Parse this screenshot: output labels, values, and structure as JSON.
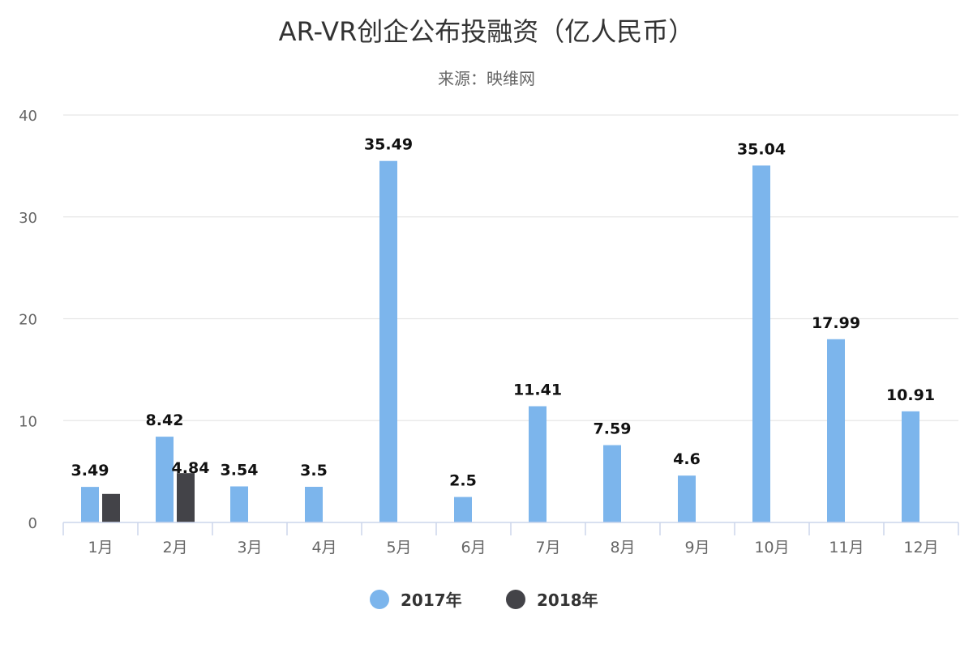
{
  "chart_data": {
    "type": "bar",
    "title": "AR-VR创企公布投融资（亿人民币）",
    "subtitle": "来源：映维网",
    "categories": [
      "1月",
      "2月",
      "3月",
      "4月",
      "5月",
      "6月",
      "7月",
      "8月",
      "9月",
      "10月",
      "11月",
      "12月"
    ],
    "series": [
      {
        "name": "2017年",
        "color": "#7cb5ec",
        "values": [
          3.49,
          8.42,
          3.54,
          3.5,
          35.49,
          2.5,
          11.41,
          7.59,
          4.6,
          35.04,
          17.99,
          10.91
        ],
        "labels": [
          "3.49",
          "8.42",
          "3.54",
          "3.5",
          "35.49",
          "2.5",
          "11.41",
          "7.59",
          "4.6",
          "35.04",
          "17.99",
          "10.91"
        ]
      },
      {
        "name": "2018年",
        "color": "#434348",
        "values": [
          2.8,
          4.84,
          null,
          null,
          null,
          null,
          null,
          null,
          null,
          null,
          null,
          null
        ],
        "labels": [
          null,
          "4.84",
          null,
          null,
          null,
          null,
          null,
          null,
          null,
          null,
          null,
          null
        ]
      }
    ],
    "ylim": [
      0,
      40
    ],
    "yticks": [
      0,
      10,
      20,
      30,
      40
    ],
    "grid": true,
    "legend_position": "bottom-center"
  }
}
